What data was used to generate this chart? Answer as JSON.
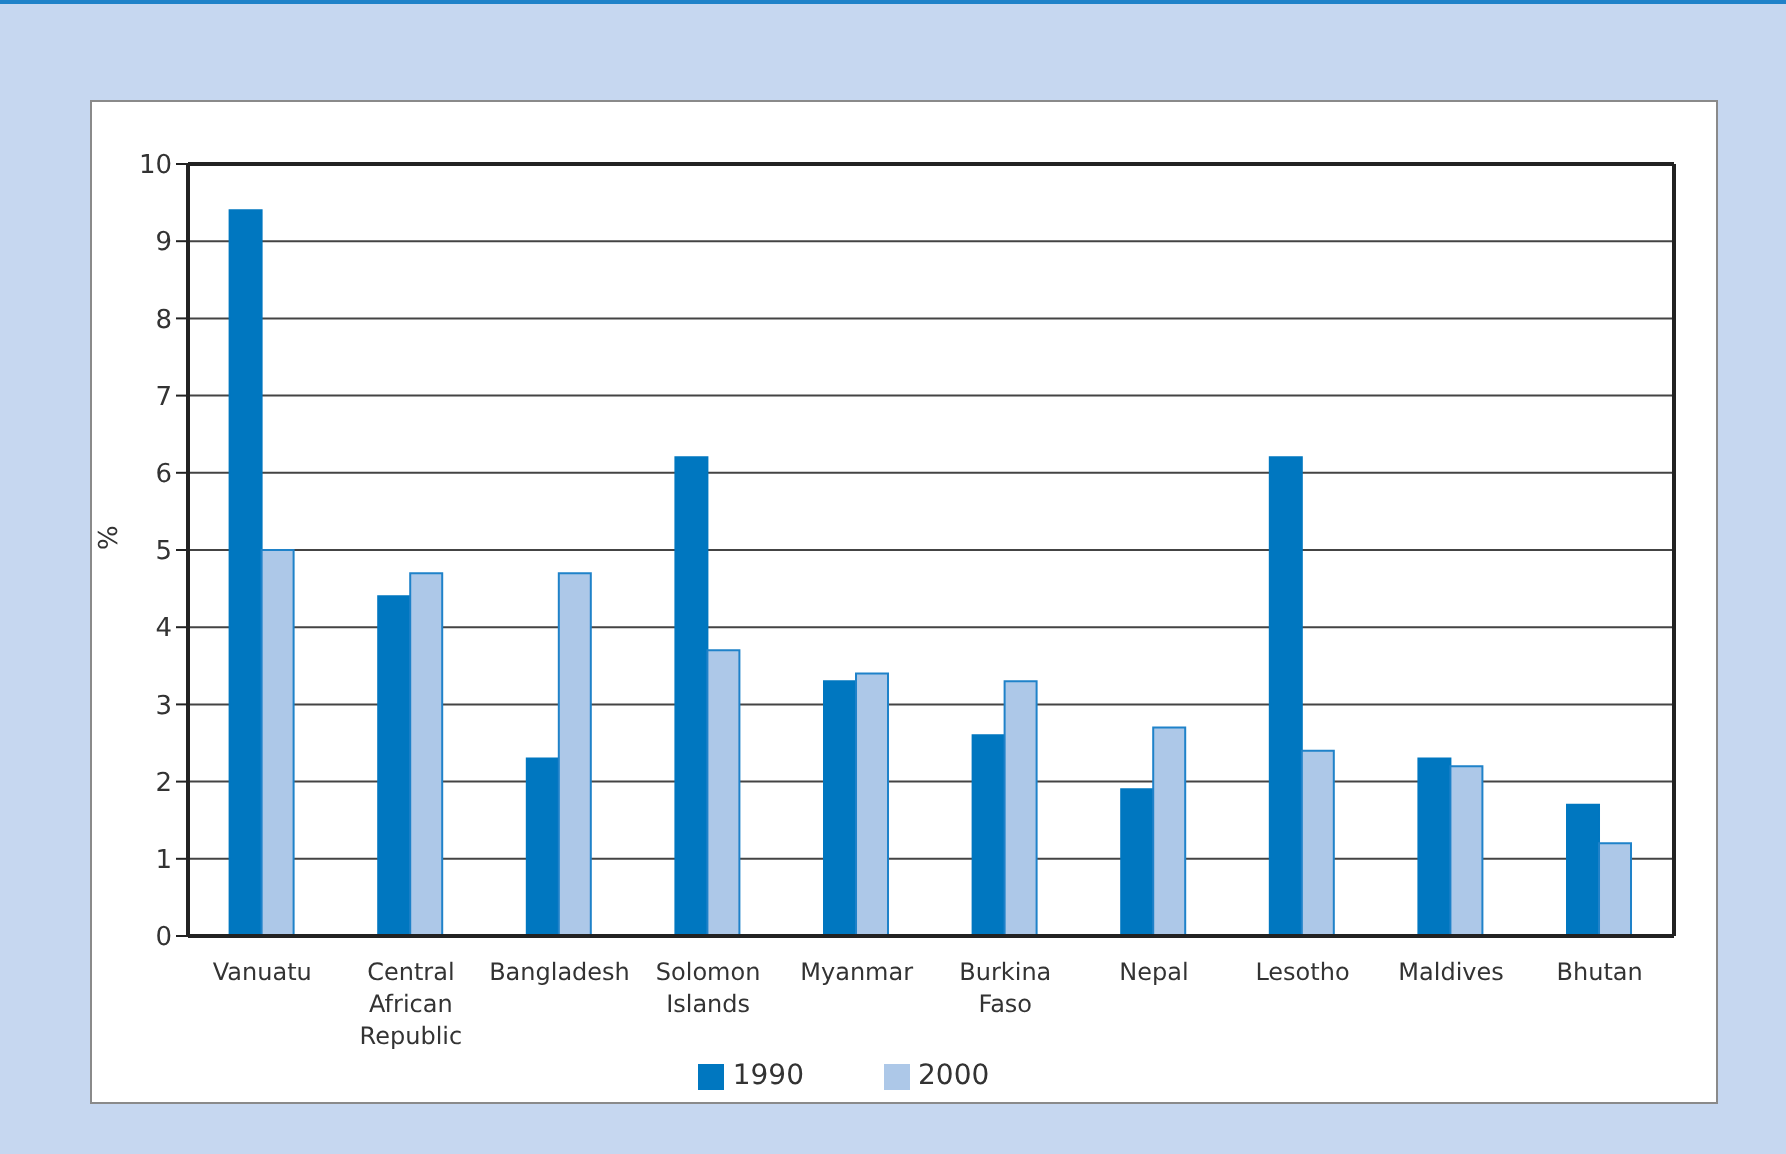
{
  "chart_data": {
    "type": "bar",
    "ylabel": "%",
    "categories": [
      "Vanuatu",
      "Central African Republic",
      "Bangladesh",
      "Solomon Islands",
      "Myanmar",
      "Burkina Faso",
      "Nepal",
      "Lesotho",
      "Maldives",
      "Bhutan"
    ],
    "series": [
      {
        "name": "1990",
        "color": "#0077c0",
        "values": [
          9.4,
          4.4,
          2.3,
          6.2,
          3.3,
          2.6,
          1.9,
          6.2,
          2.3,
          1.7
        ]
      },
      {
        "name": "2000",
        "color": "#adc8e8",
        "values": [
          5.0,
          4.7,
          4.7,
          3.7,
          3.4,
          3.3,
          2.7,
          2.4,
          2.2,
          1.2
        ]
      }
    ],
    "ylim": [
      0,
      10
    ],
    "yticks": [
      0,
      1,
      2,
      3,
      4,
      5,
      6,
      7,
      8,
      9,
      10
    ],
    "grid": "y",
    "legend": "bottom"
  }
}
